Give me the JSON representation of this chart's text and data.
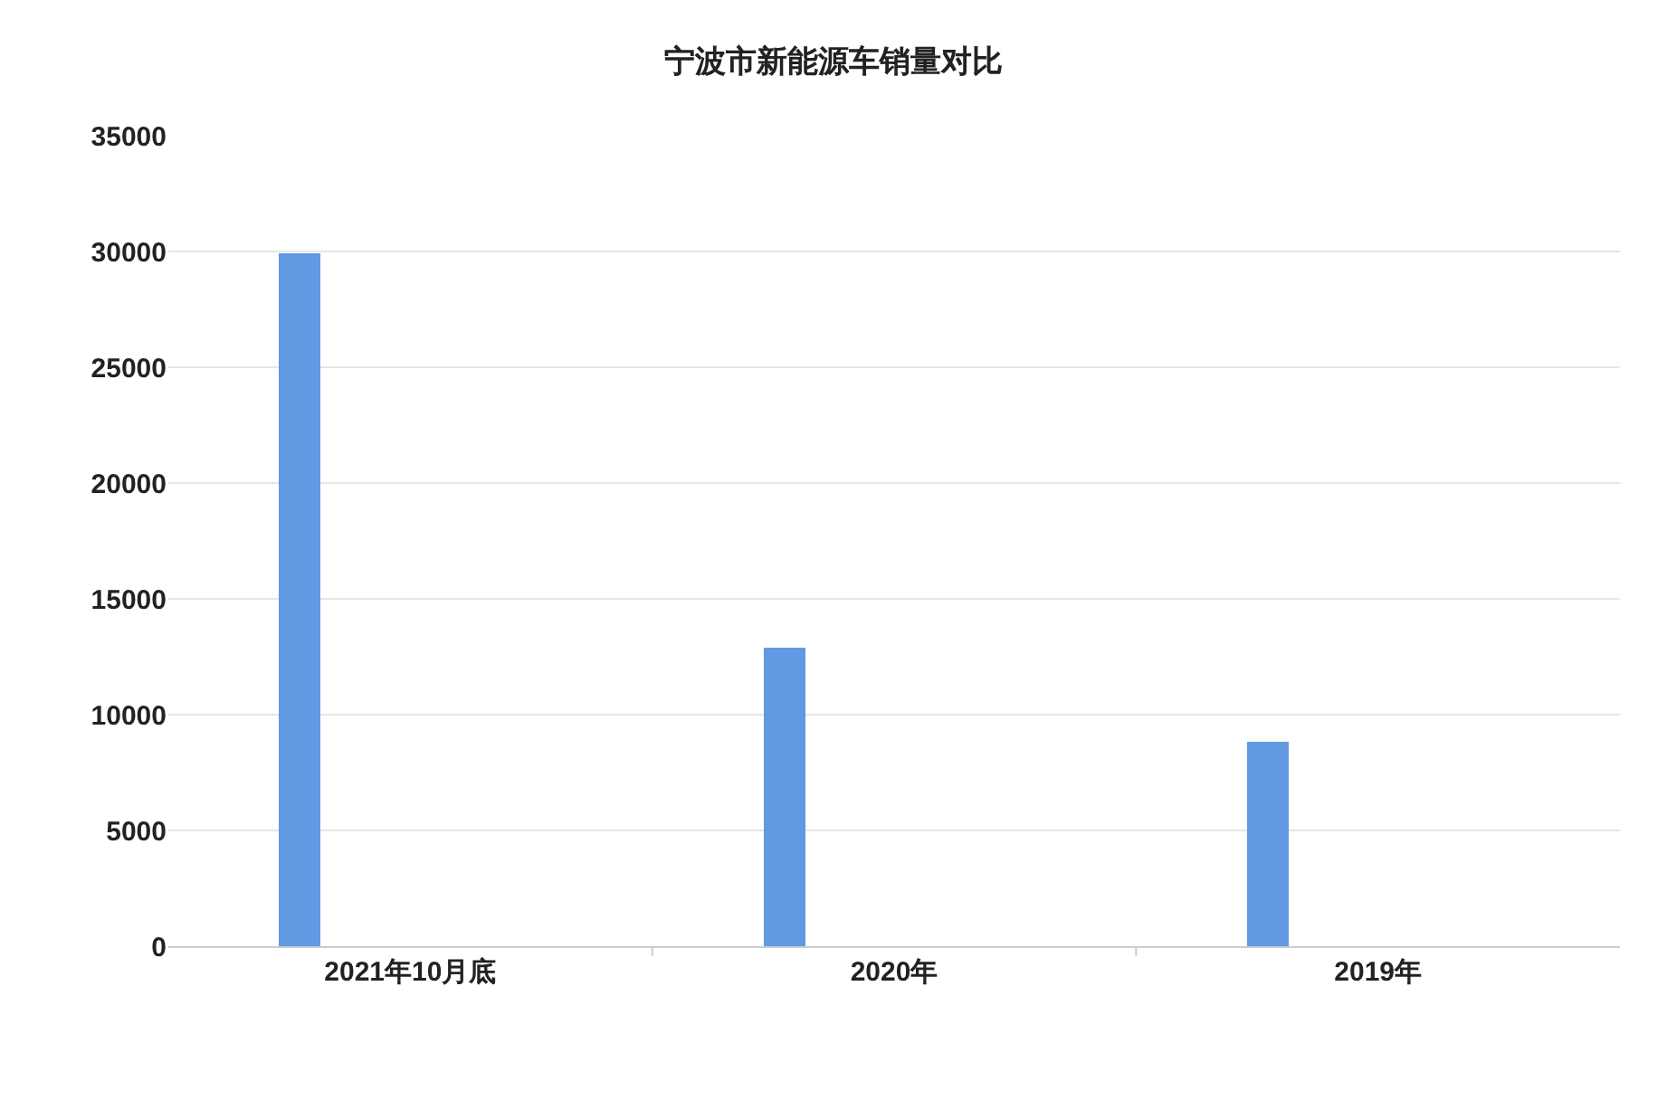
{
  "chart_data": {
    "type": "bar",
    "title": "宁波市新能源车销量对比",
    "categories": [
      "2021年10月底",
      "2020年",
      "2019年"
    ],
    "series": [
      {
        "color": "#6199e3",
        "values": [
          29900,
          12900,
          8800
        ]
      }
    ],
    "ylim": [
      0,
      35000
    ],
    "yticks": [
      0,
      5000,
      10000,
      15000,
      20000,
      25000,
      30000,
      35000
    ],
    "grid": "y"
  }
}
